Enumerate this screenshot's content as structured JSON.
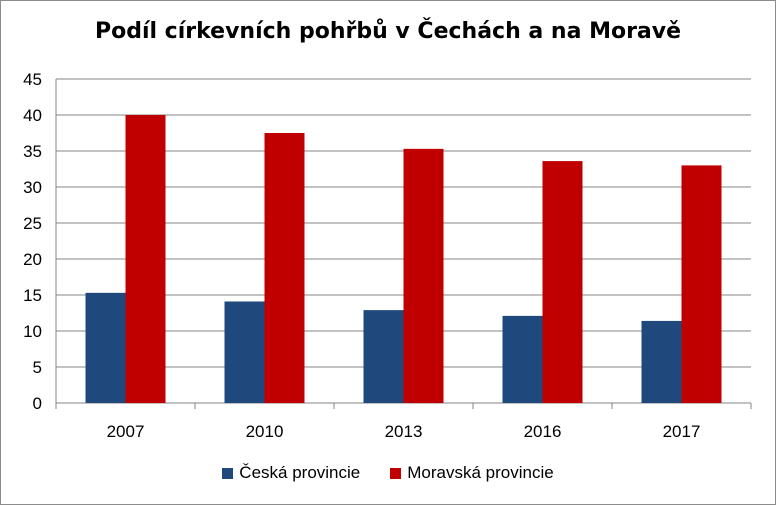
{
  "chart_data": {
    "type": "bar",
    "title": "Podíl církevních pohřbů v Čechách a na Moravě",
    "categories": [
      "2007",
      "2010",
      "2013",
      "2016",
      "2017"
    ],
    "series": [
      {
        "name": "Česká provincie",
        "color": "#1f497d",
        "values": [
          15.3,
          14.1,
          12.9,
          12.1,
          11.4
        ]
      },
      {
        "name": "Moravská provincie",
        "color": "#c00000",
        "values": [
          40.0,
          37.5,
          35.3,
          33.6,
          33.0
        ]
      }
    ],
    "ylim": [
      0,
      45
    ],
    "yticks": [
      "0",
      "5",
      "10",
      "15",
      "20",
      "25",
      "30",
      "35",
      "40",
      "45"
    ],
    "grid": true,
    "legend_position": "bottom"
  }
}
